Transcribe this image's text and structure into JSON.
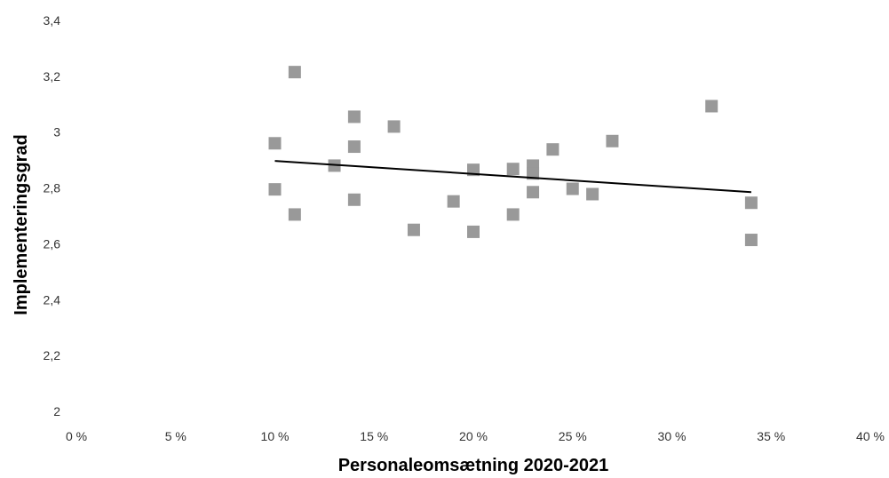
{
  "chart_data": {
    "type": "scatter",
    "title": "",
    "xlabel": "Personaleomsætning 2020-2021",
    "ylabel": "Implementeringsgrad",
    "xlim": [
      0,
      40
    ],
    "ylim": [
      2,
      3.4
    ],
    "x_ticks": [
      0,
      5,
      10,
      15,
      20,
      25,
      30,
      35,
      40
    ],
    "x_tick_labels": [
      "0 %",
      "5 %",
      "10 %",
      "15 %",
      "20 %",
      "25 %",
      "30 %",
      "35 %",
      "40 %"
    ],
    "y_ticks": [
      2,
      2.2,
      2.4,
      2.6,
      2.8,
      3,
      3.2,
      3.4
    ],
    "y_tick_labels": [
      "2",
      "2,2",
      "2,4",
      "2,6",
      "2,8",
      "3",
      "3,2",
      "3,4"
    ],
    "grid": false,
    "legend": "none",
    "marker_color": "#999999",
    "trendline_color": "#000000",
    "series": [
      {
        "points": [
          [
            10,
            2.96
          ],
          [
            10,
            2.795
          ],
          [
            11,
            3.215
          ],
          [
            11,
            2.705
          ],
          [
            13,
            2.88
          ],
          [
            14,
            3.055
          ],
          [
            14,
            2.948
          ],
          [
            14,
            2.758
          ],
          [
            16,
            3.02
          ],
          [
            17,
            2.65
          ],
          [
            19,
            2.752
          ],
          [
            20,
            2.865
          ],
          [
            20,
            2.643
          ],
          [
            22,
            2.868
          ],
          [
            22,
            2.705
          ],
          [
            23,
            2.88
          ],
          [
            23,
            2.852
          ],
          [
            23,
            2.785
          ],
          [
            24,
            2.938
          ],
          [
            25,
            2.797
          ],
          [
            26,
            2.778
          ],
          [
            27,
            2.968
          ],
          [
            32,
            3.093
          ],
          [
            34,
            2.747
          ],
          [
            34,
            2.614
          ]
        ]
      }
    ],
    "trendline": {
      "x": [
        10,
        34
      ],
      "y": [
        2.897,
        2.785
      ]
    }
  }
}
